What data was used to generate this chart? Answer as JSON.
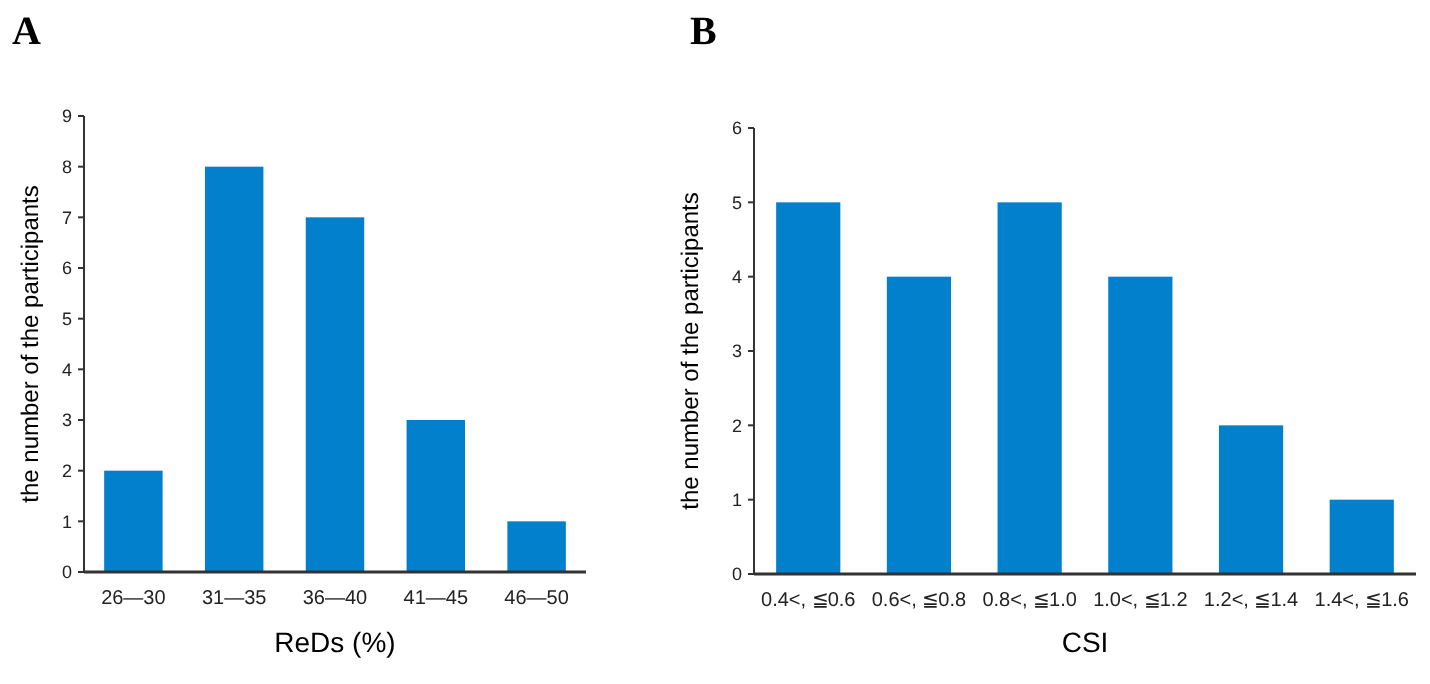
{
  "chart_data": [
    {
      "type": "bar",
      "title": "A",
      "xlabel": "ReDs (%)",
      "ylabel": "the number of the participants",
      "categories": [
        "26—30",
        "31—35",
        "36—40",
        "41—45",
        "46—50"
      ],
      "values": [
        2,
        8,
        7,
        3,
        1
      ],
      "color": "#0380cc",
      "ylim": [
        0,
        9
      ],
      "yticks": [
        0,
        1,
        2,
        3,
        4,
        5,
        6,
        7,
        8,
        9
      ],
      "grid": false
    },
    {
      "type": "bar",
      "title": "B",
      "xlabel": "CSI",
      "ylabel": "the number of the participants",
      "categories": [
        "0.4<, ≦0.6",
        "0.6<, ≦0.8",
        "0.8<, ≦1.0",
        "1.0<, ≦1.2",
        "1.2<, ≦1.4",
        "1.4<, ≦1.6"
      ],
      "values": [
        5,
        4,
        5,
        4,
        2,
        1
      ],
      "color": "#0380cc",
      "ylim": [
        0,
        6
      ],
      "yticks": [
        0,
        1,
        2,
        3,
        4,
        5,
        6
      ],
      "grid": false
    }
  ]
}
